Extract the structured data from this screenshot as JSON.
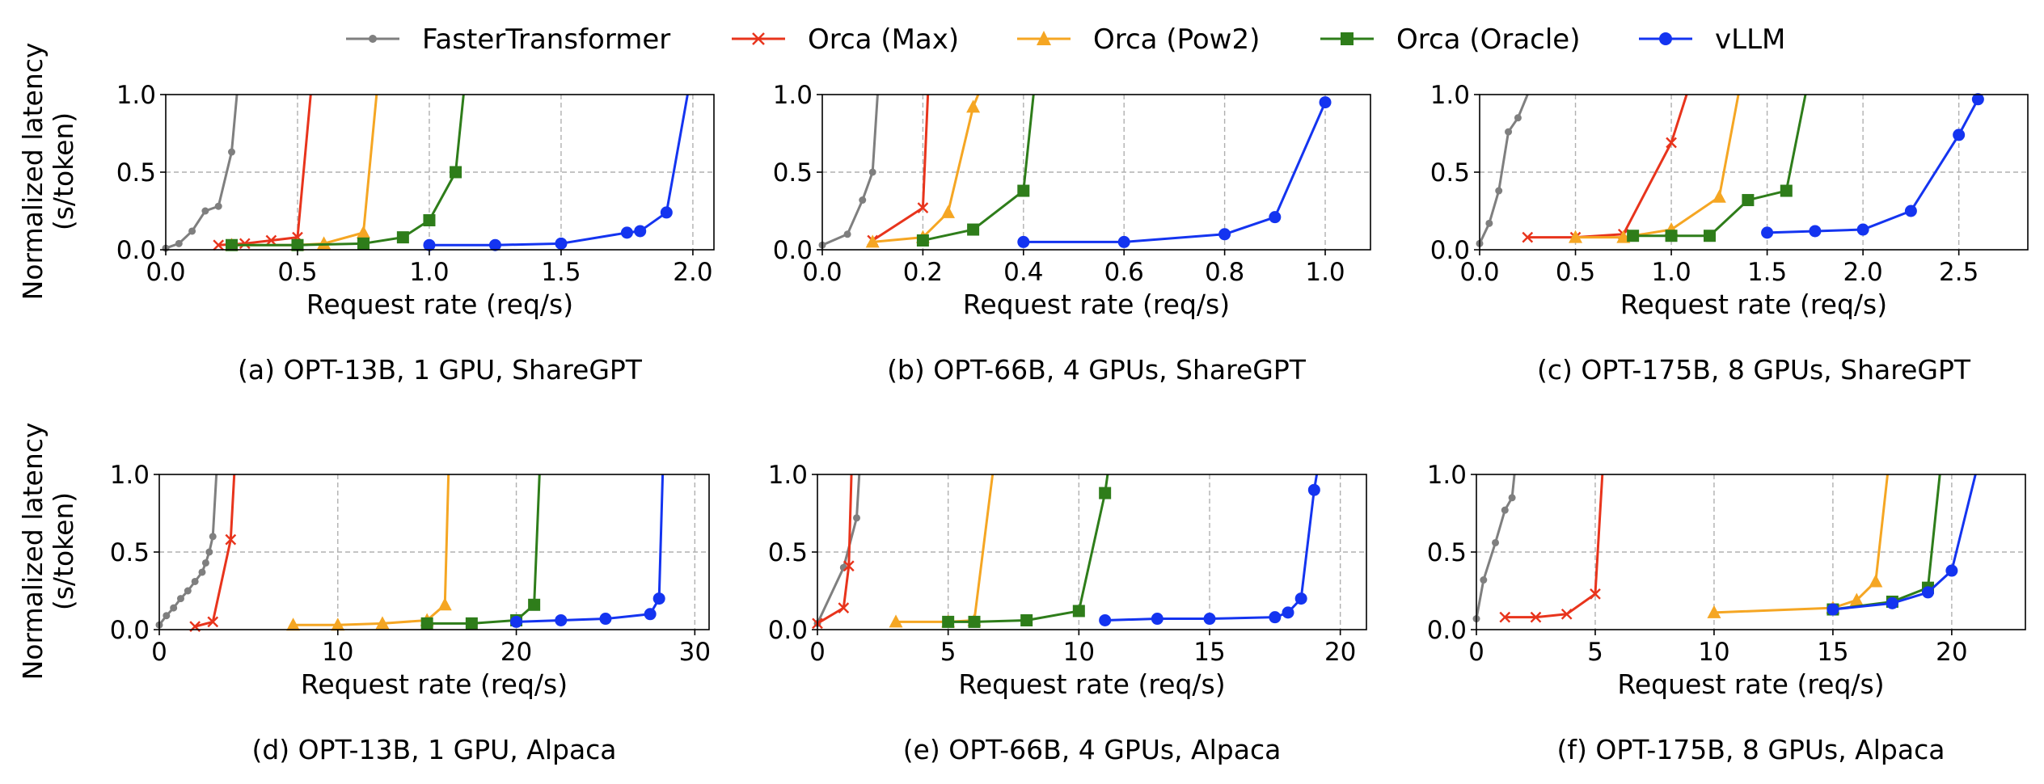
{
  "legend": [
    {
      "name": "FasterTransformer",
      "color": "#7f7f7f",
      "marker": "dot"
    },
    {
      "name": "Orca (Max)",
      "color": "#e8341c",
      "marker": "x"
    },
    {
      "name": "Orca (Pow2)",
      "color": "#f5a623",
      "marker": "triangle"
    },
    {
      "name": "Orca (Oracle)",
      "color": "#2e7d1a",
      "marker": "square"
    },
    {
      "name": "vLLM",
      "color": "#1434f0",
      "marker": "circle"
    }
  ],
  "ylabel_line1": "Normalized latency",
  "ylabel_line2": "(s/token)",
  "chart_data": [
    {
      "type": "line",
      "caption": "(a) OPT-13B, 1 GPU, ShareGPT",
      "xlabel": "Request rate (req/s)",
      "xlim": [
        0,
        2.08
      ],
      "ylim": [
        0,
        1.0
      ],
      "xticks": [
        0.0,
        0.5,
        1.0,
        1.5,
        2.0
      ],
      "xtick_labels": [
        "0.0",
        "0.5",
        "1.0",
        "1.5",
        "2.0"
      ],
      "yticks": [
        0.0,
        0.5,
        1.0
      ],
      "ytick_labels": [
        "0.0",
        "0.5",
        "1.0"
      ],
      "grid": true,
      "series": [
        {
          "name": "FasterTransformer",
          "points": [
            [
              0,
              0.01
            ],
            [
              0.05,
              0.04
            ],
            [
              0.1,
              0.12
            ],
            [
              0.15,
              0.25
            ],
            [
              0.2,
              0.28
            ],
            [
              0.25,
              0.63
            ],
            [
              0.27,
              1.0
            ]
          ]
        },
        {
          "name": "Orca (Max)",
          "points": [
            [
              0.2,
              0.03
            ],
            [
              0.3,
              0.04
            ],
            [
              0.4,
              0.06
            ],
            [
              0.5,
              0.08
            ],
            [
              0.55,
              1.0
            ]
          ]
        },
        {
          "name": "Orca (Pow2)",
          "points": [
            [
              0.25,
              0.03
            ],
            [
              0.5,
              0.03
            ],
            [
              0.6,
              0.04
            ],
            [
              0.75,
              0.11
            ],
            [
              0.8,
              1.0
            ]
          ]
        },
        {
          "name": "Orca (Oracle)",
          "points": [
            [
              0.25,
              0.03
            ],
            [
              0.5,
              0.03
            ],
            [
              0.75,
              0.04
            ],
            [
              0.9,
              0.08
            ],
            [
              1.0,
              0.19
            ],
            [
              1.1,
              0.5
            ],
            [
              1.13,
              1.0
            ]
          ]
        },
        {
          "name": "vLLM",
          "points": [
            [
              1.0,
              0.03
            ],
            [
              1.25,
              0.03
            ],
            [
              1.5,
              0.04
            ],
            [
              1.75,
              0.11
            ],
            [
              1.8,
              0.12
            ],
            [
              1.9,
              0.24
            ],
            [
              1.98,
              1.0
            ]
          ]
        }
      ]
    },
    {
      "type": "line",
      "caption": "(b) OPT-66B, 4 GPUs, ShareGPT",
      "xlabel": "Request rate (req/s)",
      "xlim": [
        0,
        1.09
      ],
      "ylim": [
        0,
        1.0
      ],
      "xticks": [
        0.0,
        0.2,
        0.4,
        0.6,
        0.8,
        1.0
      ],
      "xtick_labels": [
        "0.0",
        "0.2",
        "0.4",
        "0.6",
        "0.8",
        "1.0"
      ],
      "yticks": [
        0.0,
        0.5,
        1.0
      ],
      "ytick_labels": [
        "0.0",
        "0.5",
        "1.0"
      ],
      "grid": true,
      "series": [
        {
          "name": "FasterTransformer",
          "points": [
            [
              0,
              0.03
            ],
            [
              0.05,
              0.1
            ],
            [
              0.08,
              0.32
            ],
            [
              0.1,
              0.5
            ],
            [
              0.11,
              1.0
            ]
          ]
        },
        {
          "name": "Orca (Max)",
          "points": [
            [
              0.1,
              0.06
            ],
            [
              0.2,
              0.27
            ],
            [
              0.21,
              1.0
            ]
          ]
        },
        {
          "name": "Orca (Pow2)",
          "points": [
            [
              0.1,
              0.05
            ],
            [
              0.2,
              0.08
            ],
            [
              0.25,
              0.24
            ],
            [
              0.3,
              0.92
            ],
            [
              0.31,
              1.0
            ]
          ]
        },
        {
          "name": "Orca (Oracle)",
          "points": [
            [
              0.2,
              0.06
            ],
            [
              0.3,
              0.13
            ],
            [
              0.4,
              0.38
            ],
            [
              0.42,
              1.0
            ]
          ]
        },
        {
          "name": "vLLM",
          "points": [
            [
              0.4,
              0.05
            ],
            [
              0.6,
              0.05
            ],
            [
              0.8,
              0.1
            ],
            [
              0.9,
              0.21
            ],
            [
              1.0,
              0.95
            ]
          ]
        }
      ]
    },
    {
      "type": "line",
      "caption": "(c) OPT-175B, 8 GPUs, ShareGPT",
      "xlabel": "Request rate (req/s)",
      "xlim": [
        0,
        2.86
      ],
      "ylim": [
        0,
        1.0
      ],
      "xticks": [
        0.0,
        0.5,
        1.0,
        1.5,
        2.0,
        2.5
      ],
      "xtick_labels": [
        "0.0",
        "0.5",
        "1.0",
        "1.5",
        "2.0",
        "2.5"
      ],
      "yticks": [
        0.0,
        0.5,
        1.0
      ],
      "ytick_labels": [
        "0.0",
        "0.5",
        "1.0"
      ],
      "grid": true,
      "series": [
        {
          "name": "FasterTransformer",
          "points": [
            [
              0,
              0.04
            ],
            [
              0.05,
              0.17
            ],
            [
              0.1,
              0.38
            ],
            [
              0.15,
              0.76
            ],
            [
              0.2,
              0.85
            ],
            [
              0.25,
              1.0
            ]
          ]
        },
        {
          "name": "Orca (Max)",
          "points": [
            [
              0.25,
              0.08
            ],
            [
              0.5,
              0.08
            ],
            [
              0.75,
              0.1
            ],
            [
              1.0,
              0.69
            ],
            [
              1.08,
              1.0
            ]
          ]
        },
        {
          "name": "Orca (Pow2)",
          "points": [
            [
              0.5,
              0.08
            ],
            [
              0.75,
              0.08
            ],
            [
              1.0,
              0.13
            ],
            [
              1.25,
              0.34
            ],
            [
              1.35,
              1.0
            ]
          ]
        },
        {
          "name": "Orca (Oracle)",
          "points": [
            [
              0.8,
              0.09
            ],
            [
              1.0,
              0.09
            ],
            [
              1.2,
              0.09
            ],
            [
              1.4,
              0.32
            ],
            [
              1.6,
              0.38
            ],
            [
              1.7,
              1.0
            ]
          ]
        },
        {
          "name": "vLLM",
          "points": [
            [
              1.5,
              0.11
            ],
            [
              1.75,
              0.12
            ],
            [
              2.0,
              0.13
            ],
            [
              2.25,
              0.25
            ],
            [
              2.5,
              0.74
            ],
            [
              2.6,
              0.97
            ]
          ]
        }
      ]
    },
    {
      "type": "line",
      "caption": "(d) OPT-13B, 1 GPU, Alpaca",
      "xlabel": "Request rate (req/s)",
      "xlim": [
        0,
        30.8
      ],
      "ylim": [
        0,
        1.0
      ],
      "xticks": [
        0,
        10,
        20,
        30
      ],
      "xtick_labels": [
        "0",
        "10",
        "20",
        "30"
      ],
      "yticks": [
        0.0,
        0.5,
        1.0
      ],
      "ytick_labels": [
        "0.0",
        "0.5",
        "1.0"
      ],
      "grid": true,
      "series": [
        {
          "name": "FasterTransformer",
          "points": [
            [
              0,
              0.03
            ],
            [
              0.4,
              0.09
            ],
            [
              0.8,
              0.14
            ],
            [
              1.2,
              0.2
            ],
            [
              1.6,
              0.25
            ],
            [
              2.0,
              0.31
            ],
            [
              2.4,
              0.37
            ],
            [
              2.6,
              0.43
            ],
            [
              2.8,
              0.5
            ],
            [
              3.0,
              0.6
            ],
            [
              3.2,
              1.0
            ]
          ]
        },
        {
          "name": "Orca (Max)",
          "points": [
            [
              2.0,
              0.02
            ],
            [
              3.0,
              0.05
            ],
            [
              4.0,
              0.58
            ],
            [
              4.2,
              1.0
            ]
          ]
        },
        {
          "name": "Orca (Pow2)",
          "points": [
            [
              7.5,
              0.03
            ],
            [
              10.0,
              0.03
            ],
            [
              12.5,
              0.04
            ],
            [
              15.0,
              0.06
            ],
            [
              16.0,
              0.16
            ],
            [
              16.2,
              1.0
            ]
          ]
        },
        {
          "name": "Orca (Oracle)",
          "points": [
            [
              15.0,
              0.04
            ],
            [
              17.5,
              0.04
            ],
            [
              20.0,
              0.06
            ],
            [
              21.0,
              0.16
            ],
            [
              21.3,
              1.0
            ]
          ]
        },
        {
          "name": "vLLM",
          "points": [
            [
              20.0,
              0.05
            ],
            [
              22.5,
              0.06
            ],
            [
              25.0,
              0.07
            ],
            [
              27.5,
              0.1
            ],
            [
              28.0,
              0.2
            ],
            [
              28.2,
              1.0
            ]
          ]
        }
      ]
    },
    {
      "type": "line",
      "caption": "(e) OPT-66B, 4 GPUs, Alpaca",
      "xlabel": "Request rate (req/s)",
      "xlim": [
        0,
        21.0
      ],
      "ylim": [
        0,
        1.0
      ],
      "xticks": [
        0,
        5,
        10,
        15,
        20
      ],
      "xtick_labels": [
        "0",
        "5",
        "10",
        "15",
        "20"
      ],
      "yticks": [
        0.0,
        0.5,
        1.0
      ],
      "ytick_labels": [
        "0.0",
        "0.5",
        "1.0"
      ],
      "grid": true,
      "series": [
        {
          "name": "FasterTransformer",
          "points": [
            [
              0,
              0.04
            ],
            [
              1.0,
              0.4
            ],
            [
              1.5,
              0.72
            ],
            [
              1.6,
              1.0
            ]
          ]
        },
        {
          "name": "Orca (Max)",
          "points": [
            [
              0,
              0.04
            ],
            [
              1.0,
              0.14
            ],
            [
              1.2,
              0.41
            ],
            [
              1.3,
              1.0
            ]
          ]
        },
        {
          "name": "Orca (Pow2)",
          "points": [
            [
              3.0,
              0.05
            ],
            [
              5.0,
              0.05
            ],
            [
              6.0,
              0.06
            ],
            [
              6.7,
              1.0
            ]
          ]
        },
        {
          "name": "Orca (Oracle)",
          "points": [
            [
              5.0,
              0.05
            ],
            [
              6.0,
              0.05
            ],
            [
              8.0,
              0.06
            ],
            [
              10.0,
              0.12
            ],
            [
              11.0,
              0.88
            ],
            [
              11.1,
              1.0
            ]
          ]
        },
        {
          "name": "vLLM",
          "points": [
            [
              11.0,
              0.06
            ],
            [
              13.0,
              0.07
            ],
            [
              15.0,
              0.07
            ],
            [
              17.5,
              0.08
            ],
            [
              18.0,
              0.11
            ],
            [
              18.5,
              0.2
            ],
            [
              19.0,
              0.9
            ],
            [
              19.1,
              1.0
            ]
          ]
        }
      ]
    },
    {
      "type": "line",
      "caption": "(f) OPT-175B, 8 GPUs, Alpaca",
      "xlabel": "Request rate (req/s)",
      "xlim": [
        0,
        23.1
      ],
      "ylim": [
        0,
        1.0
      ],
      "xticks": [
        0,
        5,
        10,
        15,
        20
      ],
      "xtick_labels": [
        "0",
        "5",
        "10",
        "15",
        "20"
      ],
      "yticks": [
        0.0,
        0.5,
        1.0
      ],
      "ytick_labels": [
        "0.0",
        "0.5",
        "1.0"
      ],
      "grid": true,
      "series": [
        {
          "name": "FasterTransformer",
          "points": [
            [
              0,
              0.07
            ],
            [
              0.3,
              0.32
            ],
            [
              0.8,
              0.56
            ],
            [
              1.2,
              0.77
            ],
            [
              1.5,
              0.85
            ],
            [
              1.6,
              1.0
            ]
          ]
        },
        {
          "name": "Orca (Max)",
          "points": [
            [
              1.2,
              0.08
            ],
            [
              2.5,
              0.08
            ],
            [
              3.8,
              0.1
            ],
            [
              5.0,
              0.23
            ],
            [
              5.3,
              1.0
            ]
          ]
        },
        {
          "name": "Orca (Pow2)",
          "points": [
            [
              10.0,
              0.11
            ],
            [
              15.0,
              0.14
            ],
            [
              16.0,
              0.19
            ],
            [
              16.8,
              0.31
            ],
            [
              17.3,
              1.0
            ]
          ]
        },
        {
          "name": "Orca (Oracle)",
          "points": [
            [
              15.0,
              0.13
            ],
            [
              17.5,
              0.18
            ],
            [
              19.0,
              0.27
            ],
            [
              19.5,
              1.0
            ]
          ]
        },
        {
          "name": "vLLM",
          "points": [
            [
              15.0,
              0.13
            ],
            [
              17.5,
              0.17
            ],
            [
              19.0,
              0.24
            ],
            [
              20.0,
              0.38
            ],
            [
              21.0,
              1.0
            ]
          ]
        }
      ]
    }
  ]
}
